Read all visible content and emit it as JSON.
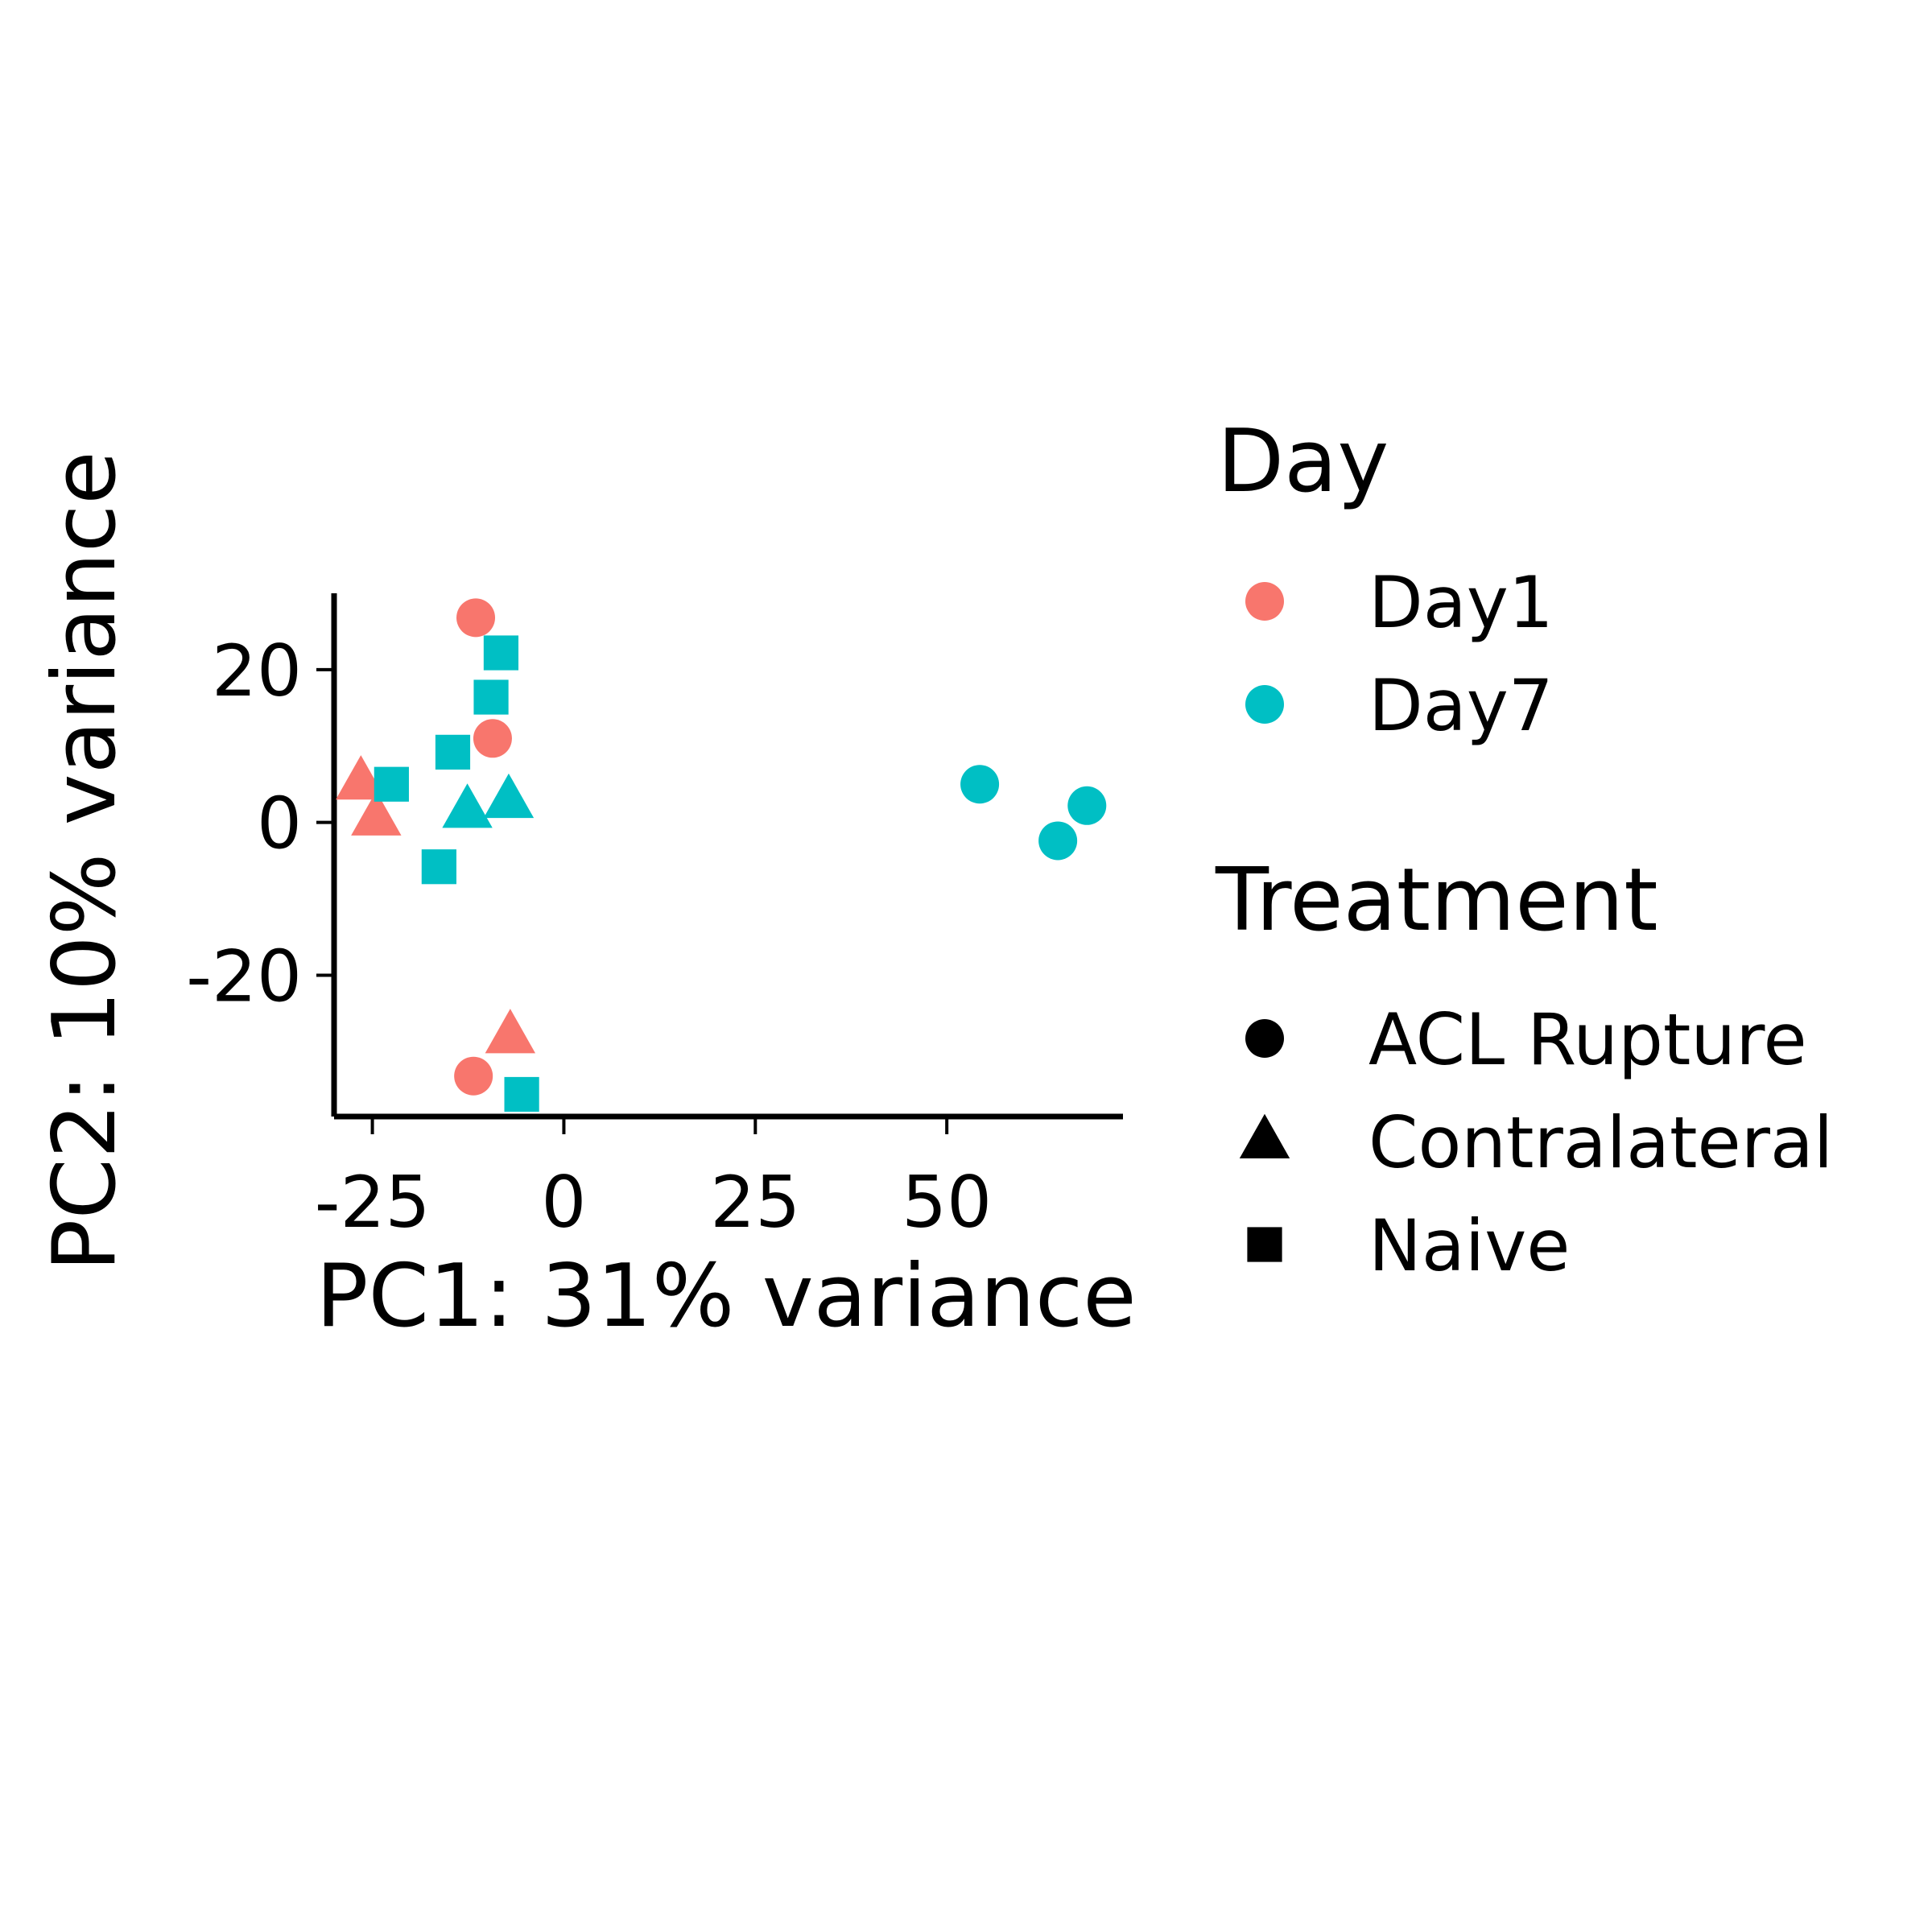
{
  "chart_data": {
    "type": "scatter",
    "title": "",
    "xlabel": "PC1: 31% variance",
    "ylabel": "PC2: 10% variance",
    "xlim": [
      -30,
      73
    ],
    "ylim": [
      -38.5,
      30
    ],
    "xticks": [
      -25,
      0,
      25,
      50
    ],
    "yticks": [
      -20,
      0,
      20
    ],
    "xtick_labels": [
      "-25",
      "0",
      "25",
      "50"
    ],
    "ytick_labels": [
      "-20",
      "0",
      "20"
    ],
    "grid": false,
    "legend_placement": "right",
    "color_legend": {
      "title": "Day",
      "entries": [
        {
          "label": "Day1",
          "color": "#F8766D"
        },
        {
          "label": "Day7",
          "color": "#00BFC4"
        }
      ]
    },
    "shape_legend": {
      "title": "Treatment",
      "entries": [
        {
          "label": "ACL Rupture",
          "shape": "circle"
        },
        {
          "label": "Contralateral",
          "shape": "triangle"
        },
        {
          "label": "Naive",
          "shape": "square"
        }
      ]
    },
    "points": [
      {
        "x": -11.5,
        "y": 26.8,
        "day": "Day1",
        "treatment": "ACL Rupture"
      },
      {
        "x": -9.3,
        "y": 11.0,
        "day": "Day1",
        "treatment": "ACL Rupture"
      },
      {
        "x": -11.8,
        "y": -33.2,
        "day": "Day1",
        "treatment": "ACL Rupture"
      },
      {
        "x": -26.5,
        "y": 5.2,
        "day": "Day1",
        "treatment": "Contralateral"
      },
      {
        "x": -24.5,
        "y": 0.5,
        "day": "Day1",
        "treatment": "Contralateral"
      },
      {
        "x": -7.0,
        "y": -28.0,
        "day": "Day1",
        "treatment": "Contralateral"
      },
      {
        "x": -8.2,
        "y": 22.2,
        "day": "Day7",
        "treatment": "Naive"
      },
      {
        "x": -9.5,
        "y": 16.4,
        "day": "Day7",
        "treatment": "Naive"
      },
      {
        "x": -14.5,
        "y": 9.2,
        "day": "Day7",
        "treatment": "Naive"
      },
      {
        "x": -22.5,
        "y": 5.0,
        "day": "Day7",
        "treatment": "Naive"
      },
      {
        "x": -16.3,
        "y": -5.8,
        "day": "Day7",
        "treatment": "Naive"
      },
      {
        "x": -5.5,
        "y": -35.6,
        "day": "Day7",
        "treatment": "Naive"
      },
      {
        "x": -12.6,
        "y": 1.5,
        "day": "Day7",
        "treatment": "Contralateral"
      },
      {
        "x": -7.2,
        "y": 2.8,
        "day": "Day7",
        "treatment": "Contralateral"
      },
      {
        "x": 54.3,
        "y": 5.0,
        "day": "Day7",
        "treatment": "ACL Rupture"
      },
      {
        "x": 64.5,
        "y": -2.4,
        "day": "Day7",
        "treatment": "ACL Rupture"
      },
      {
        "x": 68.3,
        "y": 2.2,
        "day": "Day7",
        "treatment": "ACL Rupture"
      }
    ]
  }
}
